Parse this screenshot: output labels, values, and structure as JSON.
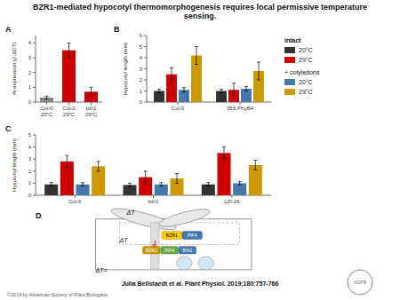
{
  "title": "BZR1-mediated hypocotyl thermomorphogenesis requires local permissive temperature\nsensing.",
  "annotations": [
    "Julia Bellstaedt et al. Plant Physiol. 2019;180:757-766",
    "©2019 by American Society of Plant Biologists",
    "ASPB"
  ],
  "chart_data": [
    {
      "type": "bar",
      "title": "A",
      "y_label": "At expression (2-ΔCT)",
      "categories": [
        "Col-0\n20°C",
        "Col-0\n29°C",
        "bzr1\n29°C"
      ],
      "values": [
        0.3,
        3.5,
        0.7
      ],
      "errors": [
        0.1,
        0.5,
        0.3
      ],
      "colors": [
        "#888888",
        "#cc0000",
        "#cc0000"
      ],
      "ylim": [
        0,
        4.5
      ],
      "yticks": [
        0,
        1,
        2,
        3,
        4
      ]
    },
    {
      "type": "bar",
      "title": "B",
      "y_label": "Hypocotyl length (mm)",
      "categories": [
        "Col-0",
        "35S:PhyB4"
      ],
      "series": [
        {
          "name": "20°C",
          "color": "#333333",
          "values": [
            1.0,
            1.0
          ],
          "error": 0.15
        },
        {
          "name": "29°C",
          "color": "#cc0000",
          "values": [
            2.5,
            1.1
          ],
          "error": 0.6
        },
        {
          "name": "20°C",
          "color": "#4477aa",
          "values": [
            1.1,
            1.2
          ],
          "error": 0.2
        },
        {
          "name": "29°C",
          "color": "#cc9900",
          "values": [
            4.2,
            2.8
          ],
          "error": 0.8
        }
      ],
      "annotations": [
        "intact",
        "+ cotyledons"
      ],
      "legend": "right",
      "ylim": [
        0,
        6
      ],
      "yticks": [
        0,
        1,
        2,
        3,
        4,
        5,
        6
      ]
    },
    {
      "type": "bar",
      "title": "C",
      "y_label": "Hypocotyl length (mm)",
      "categories": [
        "Col-0",
        "bzr1",
        "LZI-26"
      ],
      "series": [
        {
          "color": "#333333",
          "values": [
            0.9,
            0.85,
            0.9
          ],
          "error": 0.15
        },
        {
          "color": "#cc0000",
          "values": [
            2.8,
            1.5,
            3.5
          ],
          "error": 0.5
        },
        {
          "color": "#4477aa",
          "values": [
            0.9,
            0.9,
            1.0
          ],
          "error": 0.15
        },
        {
          "color": "#cc9900",
          "values": [
            2.4,
            1.4,
            2.5
          ],
          "error": 0.4
        }
      ],
      "ylim": [
        0,
        5
      ],
      "yticks": [
        0,
        1,
        2,
        3,
        4,
        5
      ]
    },
    {
      "type": "diagram",
      "title": "D",
      "annotations": [
        "BZR1",
        "PIF4",
        "BZR1",
        "PIF4",
        "BIN2",
        "ΔT",
        "ΔT",
        "ΔT="
      ]
    }
  ]
}
